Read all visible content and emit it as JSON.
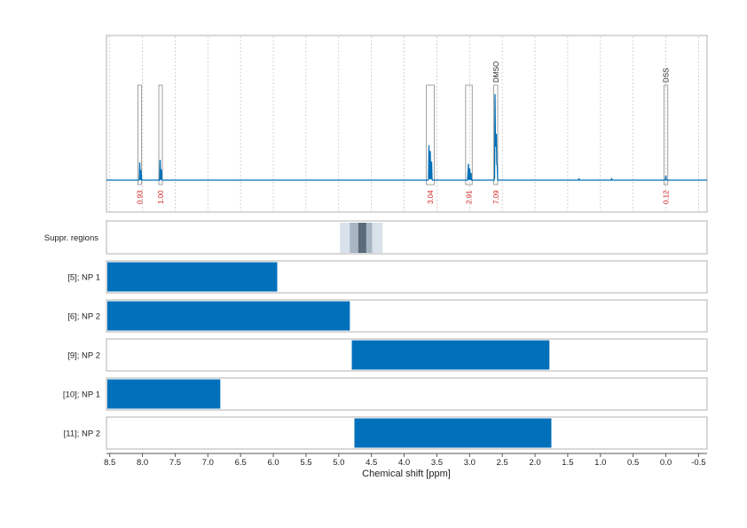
{
  "chart_data": {
    "type": "nmr-spectrum-with-range-bars",
    "xlabel": "Chemical shift [ppm]",
    "xlim": [
      8.55,
      -0.63
    ],
    "x_reversed": true,
    "xticks": [
      8.5,
      8.0,
      7.5,
      7.0,
      6.5,
      6.0,
      5.5,
      5.0,
      4.5,
      4.0,
      3.5,
      3.0,
      2.5,
      2.0,
      1.5,
      1.0,
      0.5,
      0.0,
      -0.5
    ],
    "xtick_labels": [
      "8.5",
      "8.0",
      "7.5",
      "7.0",
      "6.5",
      "6.0",
      "5.5",
      "5.0",
      "4.5",
      "4.0",
      "3.5",
      "3.0",
      "2.5",
      "2.0",
      "1.5",
      "1.0",
      "0.5",
      "0.0",
      "-0.5"
    ],
    "spectrum": {
      "color": "#0070b8",
      "peaks": [
        {
          "ppm": 8.04,
          "height": 0.22
        },
        {
          "ppm": 8.02,
          "height": 0.12
        },
        {
          "ppm": 7.73,
          "height": 0.22
        },
        {
          "ppm": 7.71,
          "height": 0.12
        },
        {
          "ppm": 3.62,
          "height": 0.4
        },
        {
          "ppm": 3.6,
          "height": 0.32
        },
        {
          "ppm": 3.58,
          "height": 0.2
        },
        {
          "ppm": 3.02,
          "height": 0.25
        },
        {
          "ppm": 3.0,
          "height": 0.2
        },
        {
          "ppm": 2.98,
          "height": 0.14
        },
        {
          "ppm": 2.61,
          "height": 0.96
        },
        {
          "ppm": 2.6,
          "height": 0.7
        },
        {
          "ppm": 2.59,
          "height": 0.5
        },
        {
          "ppm": 2.58,
          "height": 0.3
        },
        {
          "ppm": 1.33,
          "height": 0.02
        },
        {
          "ppm": 0.83,
          "height": 0.02
        },
        {
          "ppm": 0.0,
          "height": 0.05
        }
      ],
      "integration_regions": [
        {
          "from": 8.07,
          "to": 8.02,
          "label": "0.93"
        },
        {
          "from": 7.75,
          "to": 7.7,
          "label": "1.00"
        },
        {
          "from": 3.66,
          "to": 3.54,
          "label": "3.04"
        },
        {
          "from": 3.06,
          "to": 2.96,
          "label": "2.91"
        },
        {
          "from": 2.63,
          "to": 2.57,
          "label": "7.09",
          "annotation": "DMSO"
        },
        {
          "from": 0.03,
          "to": -0.03,
          "label": "0.12",
          "annotation": "DSS"
        }
      ]
    },
    "suppression": {
      "label": "Suppr. regions",
      "bands": [
        {
          "from": 4.98,
          "to": 4.33,
          "color": "#d9e1ea"
        },
        {
          "from": 4.83,
          "to": 4.49,
          "color": "#a8b5c2"
        },
        {
          "from": 4.7,
          "to": 4.58,
          "color": "#5b6b7b"
        }
      ]
    },
    "range_rows": [
      {
        "label": "[5]; NP 1",
        "from": 8.55,
        "to": 5.94,
        "color": "#0070bb"
      },
      {
        "label": "[6]; NP 2",
        "from": 8.55,
        "to": 4.83,
        "color": "#0070bb"
      },
      {
        "label": "[9]; NP 2",
        "from": 4.8,
        "to": 1.78,
        "color": "#0070bb"
      },
      {
        "label": "[10]; NP 1",
        "from": 8.55,
        "to": 6.81,
        "color": "#0070bb"
      },
      {
        "label": "[11]; NP 2",
        "from": 4.76,
        "to": 1.75,
        "color": "#0070bb"
      }
    ]
  }
}
